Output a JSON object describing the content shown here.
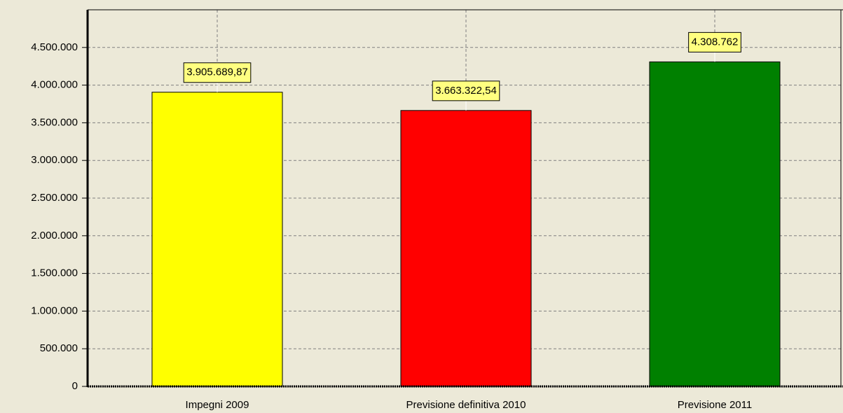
{
  "chart_data": {
    "type": "bar",
    "categories": [
      "Impegni 2009",
      "Previsione definitiva 2010",
      "Previsione 2011"
    ],
    "values": [
      3905689.87,
      3663322.54,
      4308762
    ],
    "value_labels": [
      "3.905.689,87",
      "3.663.322,54",
      "4.308.762"
    ],
    "colors": [
      "#ffff00",
      "#ff0000",
      "#008000"
    ],
    "ylim": [
      0,
      5000000
    ],
    "yticks": [
      0,
      {
        "value": 500000,
        "label": "500.000"
      },
      {
        "value": 1000000,
        "label": "1.000.000"
      },
      {
        "value": 1500000,
        "label": "1.500.000"
      },
      {
        "value": 2000000,
        "label": "2.000.000"
      },
      {
        "value": 2500000,
        "label": "2.500.000"
      },
      {
        "value": 3000000,
        "label": "3.000.000"
      },
      {
        "value": 3500000,
        "label": "3.500.000"
      },
      {
        "value": 4000000,
        "label": "4.000.000"
      },
      {
        "value": 4500000,
        "label": "4.500.000"
      }
    ],
    "grid": true
  }
}
